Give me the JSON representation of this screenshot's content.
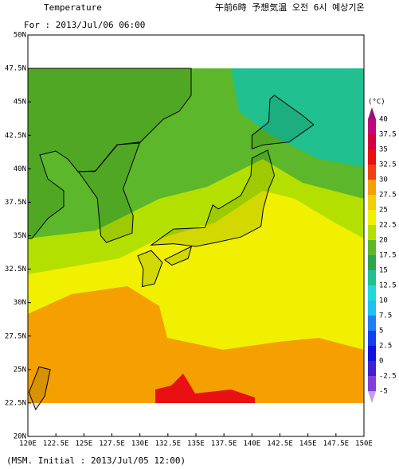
{
  "header": {
    "title": "Temperature",
    "subtitle": "午前6時 予想気温 오전 6시 예상기온",
    "valid": "For : 2013/Jul/06 06:00"
  },
  "map": {
    "lon_labels": [
      "120E",
      "122.5E",
      "125E",
      "127.5E",
      "130E",
      "132.5E",
      "135E",
      "137.5E",
      "140E",
      "142.5E",
      "145E",
      "147.5E",
      "150E"
    ],
    "lat_labels": [
      "50N",
      "47.5N",
      "45N",
      "42.5N",
      "40N",
      "37.5N",
      "35N",
      "32.5N",
      "30N",
      "27.5N",
      "25N",
      "22.5N",
      "20N"
    ]
  },
  "colorbar": {
    "unit": "(°C)",
    "labels": [
      "40",
      "37.5",
      "35",
      "32.5",
      "30",
      "27.5",
      "25",
      "22.5",
      "20",
      "17.5",
      "15",
      "12.5",
      "10",
      "7.5",
      "5",
      "2.5",
      "0",
      "-2.5",
      "-5"
    ],
    "colors": [
      "#9b0f7a",
      "#c0087a",
      "#d40040",
      "#e81010",
      "#f04010",
      "#f5a000",
      "#f0d000",
      "#f0f000",
      "#b4e000",
      "#5cb82a",
      "#2fa54a",
      "#20c090",
      "#20d8d8",
      "#20c0f0",
      "#2080f0",
      "#1040f0",
      "#1010e0",
      "#4020d0",
      "#8040d8",
      "#c0a0e8"
    ]
  },
  "footer": "(MSM. Initial : 2013/Jul/05 12:00)"
}
